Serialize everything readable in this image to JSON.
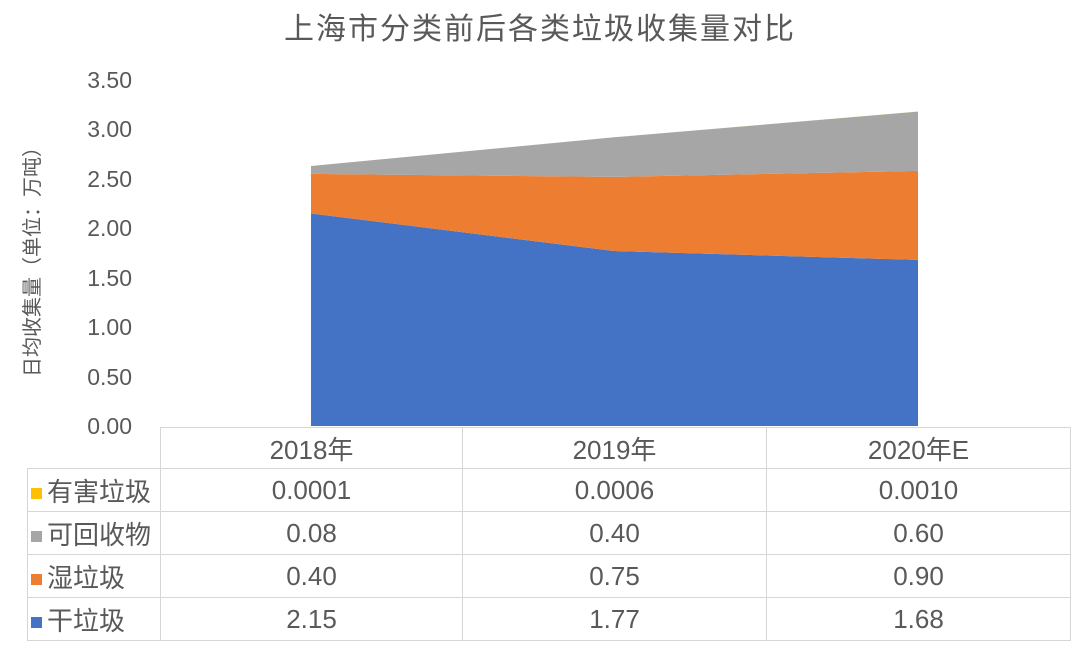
{
  "title": "上海市分类前后各类垃圾收集量对比",
  "chart_data": {
    "type": "area",
    "stacked": true,
    "title": "上海市分类前后各类垃圾收集量对比",
    "ylabel": "日均收集量（单位：万吨）",
    "xlabel": "",
    "ylim": [
      0,
      3.5
    ],
    "yticks": [
      "3.50",
      "3.00",
      "2.50",
      "2.00",
      "1.50",
      "1.00",
      "0.50",
      "0.00"
    ],
    "grid": false,
    "legend_position": "table-left",
    "categories": [
      "2018年",
      "2019年",
      "2020年E"
    ],
    "series": [
      {
        "name": "有害垃圾",
        "slug": "hazardous-waste",
        "color": "#FFC000",
        "values": [
          0.0001,
          0.0006,
          0.001
        ],
        "display": [
          "0.0001",
          "0.0006",
          "0.0010"
        ]
      },
      {
        "name": "可回收物",
        "slug": "recyclables",
        "color": "#A6A6A6",
        "values": [
          0.08,
          0.4,
          0.6
        ],
        "display": [
          "0.08",
          "0.40",
          "0.60"
        ]
      },
      {
        "name": "湿垃圾",
        "slug": "wet-garbage",
        "color": "#ED7D31",
        "values": [
          0.4,
          0.75,
          0.9
        ],
        "display": [
          "0.40",
          "0.75",
          "0.90"
        ]
      },
      {
        "name": "干垃圾",
        "slug": "dry-garbage",
        "color": "#4472C4",
        "values": [
          2.15,
          1.77,
          1.68
        ],
        "display": [
          "2.15",
          "1.77",
          "1.68"
        ]
      }
    ]
  }
}
